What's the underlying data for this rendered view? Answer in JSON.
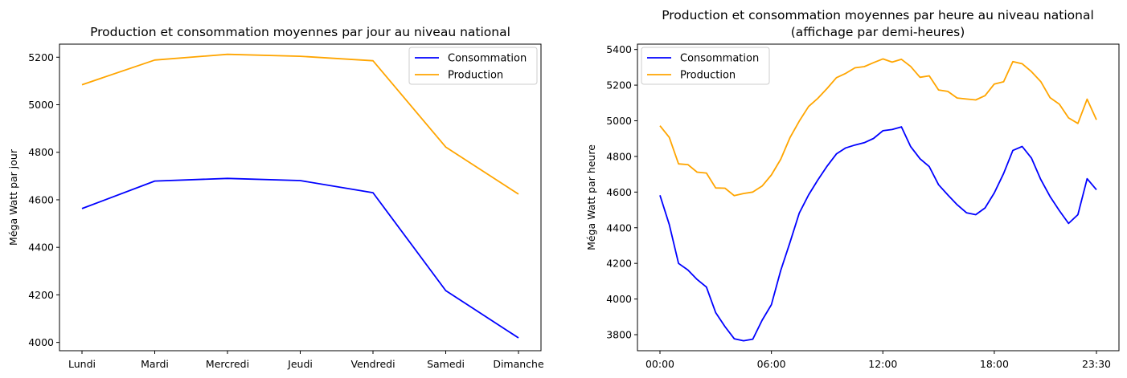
{
  "chart_data": [
    {
      "type": "line",
      "title": "Production et consommation moyennes par jour au niveau national",
      "xlabel": "",
      "ylabel": "Méga Watt par jour",
      "categories": [
        "Lundi",
        "Mardi",
        "Mercredi",
        "Jeudi",
        "Vendredi",
        "Samedi",
        "Dimanche"
      ],
      "ylim": [
        3965,
        5255
      ],
      "yticks": [
        4000,
        4200,
        4400,
        4600,
        4800,
        5000,
        5200
      ],
      "legend": "top-right",
      "grid": false,
      "series": [
        {
          "name": "Consommation",
          "color": "#0000ff",
          "values": [
            4563,
            4679,
            4690,
            4681,
            4630,
            4218,
            4019
          ]
        },
        {
          "name": "Production",
          "color": "#ffa500",
          "values": [
            5084,
            5188,
            5212,
            5204,
            5185,
            4822,
            4624
          ]
        }
      ]
    },
    {
      "type": "line",
      "title": "Production et consommation moyennes par heure au niveau national",
      "subtitle": "(affichage par demi-heures)",
      "xlabel": "",
      "ylabel": "Méga Watt par heure",
      "x": [
        "00:00",
        "00:30",
        "01:00",
        "01:30",
        "02:00",
        "02:30",
        "03:00",
        "03:30",
        "04:00",
        "04:30",
        "05:00",
        "05:30",
        "06:00",
        "06:30",
        "07:00",
        "07:30",
        "08:00",
        "08:30",
        "09:00",
        "09:30",
        "10:00",
        "10:30",
        "11:00",
        "11:30",
        "12:00",
        "12:30",
        "13:00",
        "13:30",
        "14:00",
        "14:30",
        "15:00",
        "15:30",
        "16:00",
        "16:30",
        "17:00",
        "17:30",
        "18:00",
        "18:30",
        "19:00",
        "19:30",
        "20:00",
        "20:30",
        "21:00",
        "21:30",
        "22:00",
        "22:30",
        "23:00",
        "23:30"
      ],
      "xticks": [
        "00:00",
        "06:00",
        "12:00",
        "18:00",
        "23:30"
      ],
      "ylim": [
        3710,
        5430
      ],
      "yticks": [
        3800,
        4000,
        4200,
        4400,
        4600,
        4800,
        5000,
        5200,
        5400
      ],
      "legend": "top-left",
      "grid": false,
      "series": [
        {
          "name": "Consommation",
          "color": "#0000ff",
          "values": [
            4582,
            4418,
            4200,
            4163,
            4110,
            4067,
            3924,
            3845,
            3777,
            3766,
            3775,
            3881,
            3968,
            4160,
            4317,
            4482,
            4584,
            4668,
            4746,
            4814,
            4848,
            4864,
            4877,
            4901,
            4944,
            4951,
            4966,
            4855,
            4787,
            4743,
            4641,
            4584,
            4529,
            4484,
            4473,
            4511,
            4595,
            4704,
            4834,
            4856,
            4791,
            4671,
            4576,
            4496,
            4424,
            4473,
            4675,
            4613
          ]
        },
        {
          "name": "Production",
          "color": "#ffa500",
          "values": [
            4972,
            4907,
            4758,
            4754,
            4712,
            4707,
            4623,
            4622,
            4580,
            4592,
            4600,
            4634,
            4696,
            4784,
            4905,
            4998,
            5080,
            5126,
            5182,
            5242,
            5266,
            5297,
            5304,
            5326,
            5347,
            5329,
            5345,
            5305,
            5244,
            5252,
            5173,
            5165,
            5128,
            5122,
            5117,
            5141,
            5206,
            5219,
            5332,
            5320,
            5276,
            5220,
            5130,
            5093,
            5016,
            4985,
            5121,
            5006
          ]
        }
      ]
    }
  ]
}
